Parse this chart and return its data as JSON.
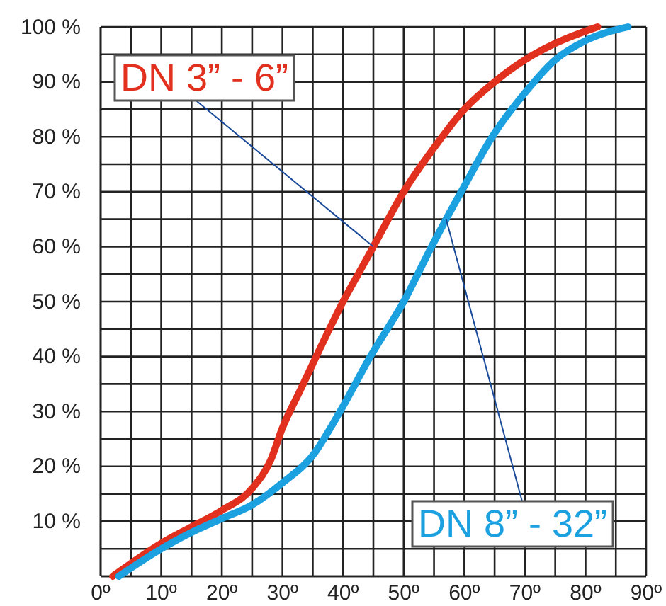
{
  "chart_data": {
    "type": "line",
    "xlim": [
      0,
      90
    ],
    "ylim": [
      0,
      100
    ],
    "xticks": [
      {
        "value": 0,
        "label": "0º"
      },
      {
        "value": 5,
        "label": null
      },
      {
        "value": 10,
        "label": "10º"
      },
      {
        "value": 15,
        "label": null
      },
      {
        "value": 20,
        "label": "20º"
      },
      {
        "value": 25,
        "label": null
      },
      {
        "value": 30,
        "label": "30º"
      },
      {
        "value": 35,
        "label": null
      },
      {
        "value": 40,
        "label": "40º"
      },
      {
        "value": 45,
        "label": null
      },
      {
        "value": 50,
        "label": "50º"
      },
      {
        "value": 55,
        "label": null
      },
      {
        "value": 60,
        "label": "60º"
      },
      {
        "value": 65,
        "label": null
      },
      {
        "value": 70,
        "label": "70º"
      },
      {
        "value": 75,
        "label": null
      },
      {
        "value": 80,
        "label": "80º"
      },
      {
        "value": 85,
        "label": null
      },
      {
        "value": 90,
        "label": "90º"
      }
    ],
    "yticks": [
      {
        "value": 0,
        "label": null
      },
      {
        "value": 5,
        "label": null
      },
      {
        "value": 10,
        "label": "10 %"
      },
      {
        "value": 15,
        "label": null
      },
      {
        "value": 20,
        "label": "20 %"
      },
      {
        "value": 25,
        "label": null
      },
      {
        "value": 30,
        "label": "30 %"
      },
      {
        "value": 35,
        "label": null
      },
      {
        "value": 40,
        "label": "40 %"
      },
      {
        "value": 45,
        "label": null
      },
      {
        "value": 50,
        "label": "50 %"
      },
      {
        "value": 55,
        "label": null
      },
      {
        "value": 60,
        "label": "60 %"
      },
      {
        "value": 65,
        "label": null
      },
      {
        "value": 70,
        "label": "70 %"
      },
      {
        "value": 75,
        "label": null
      },
      {
        "value": 80,
        "label": "80 %"
      },
      {
        "value": 85,
        "label": null
      },
      {
        "value": 90,
        "label": "90 %"
      },
      {
        "value": 95,
        "label": null
      },
      {
        "value": 100,
        "label": "100 %"
      }
    ],
    "grid": true,
    "line_style": "solid",
    "marker": "none",
    "series": [
      {
        "name": "DN 3” - 6”",
        "color": "#e2301f",
        "x": [
          2,
          10,
          15,
          20,
          25,
          28,
          30,
          33,
          36,
          40,
          43,
          45,
          50,
          55,
          60,
          65,
          70,
          75,
          82
        ],
        "values": [
          0,
          6,
          9,
          12,
          16,
          21,
          27,
          34,
          41,
          50,
          56,
          60,
          70,
          78,
          85,
          90,
          94,
          97,
          100
        ]
      },
      {
        "name": "DN 8” - 32”",
        "color": "#1ba0e0",
        "x": [
          3,
          10,
          15,
          20,
          25,
          30,
          35,
          39.5,
          44.5,
          50,
          54.6,
          57,
          59.5,
          64.6,
          70,
          75,
          80,
          87
        ],
        "values": [
          0,
          5,
          8,
          10.5,
          13,
          17,
          22,
          30,
          40,
          50,
          60,
          65,
          70,
          80,
          88,
          94,
          97.5,
          100
        ]
      }
    ]
  }
}
